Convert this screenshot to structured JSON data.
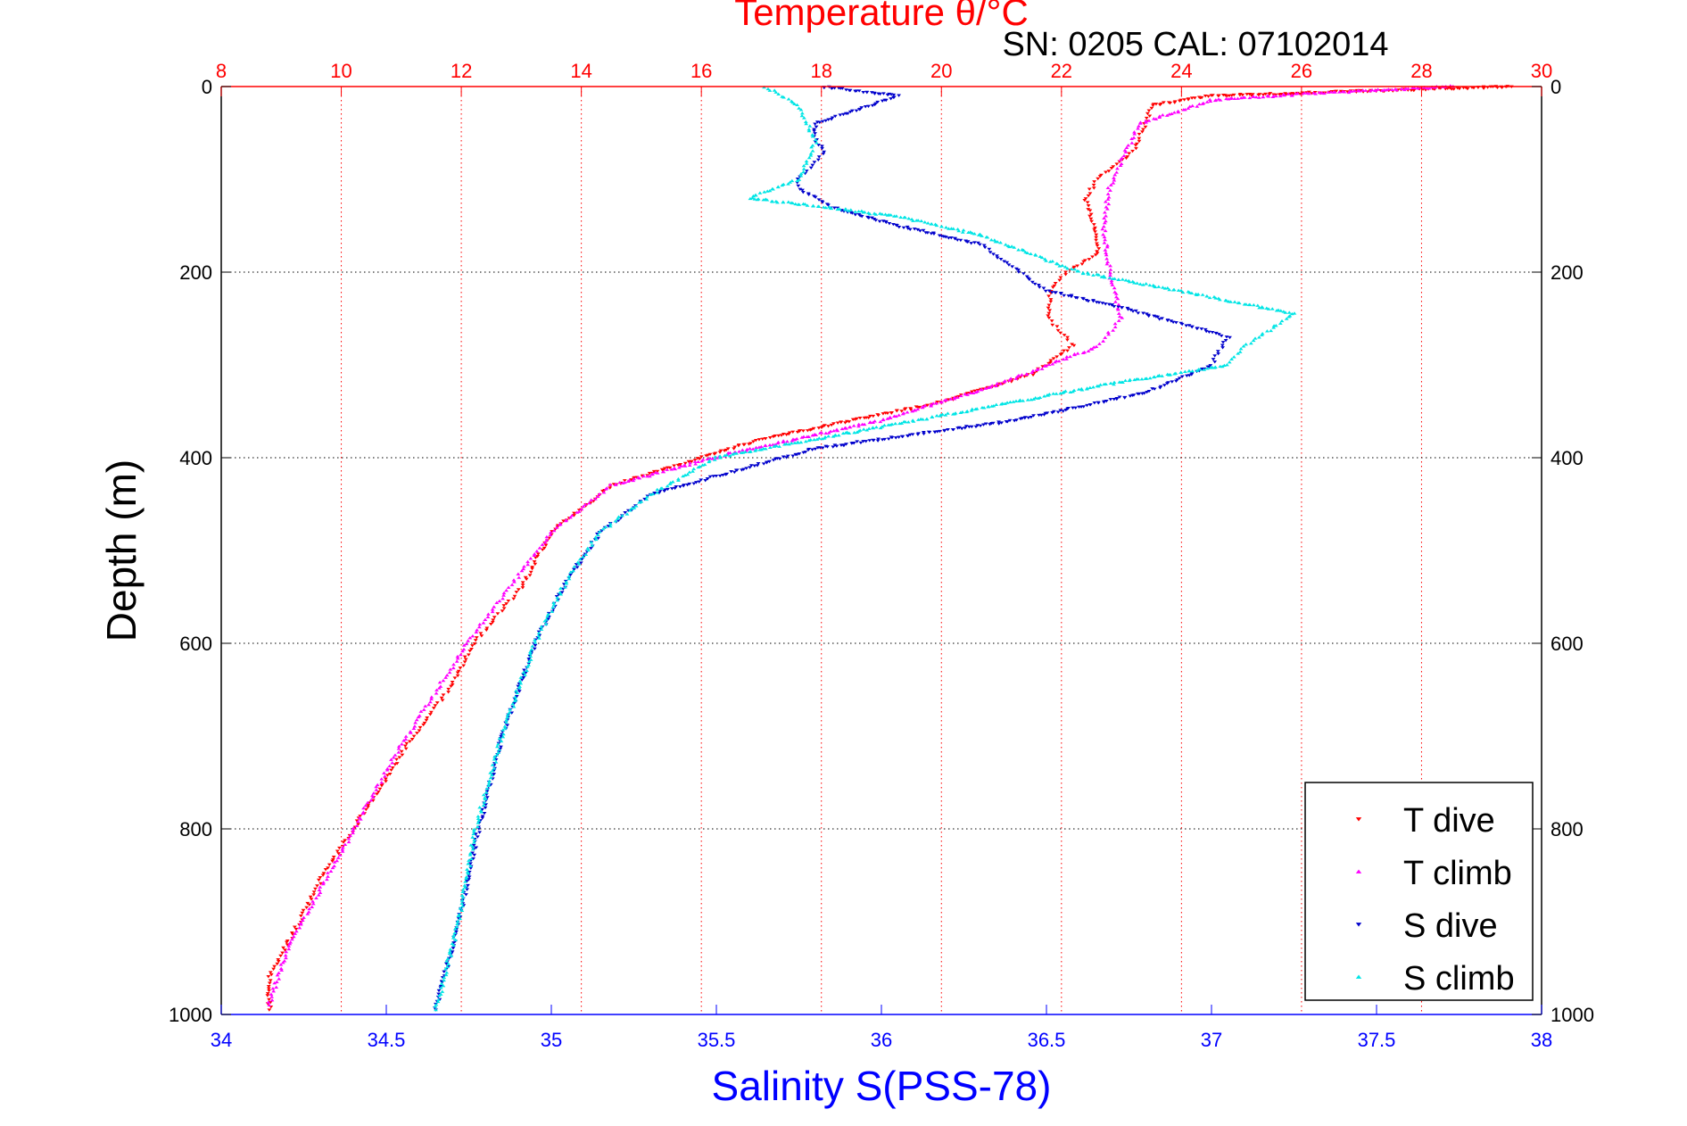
{
  "chart_data": {
    "type": "scatter",
    "title": "Temperature θ/°C",
    "subtitle": "SN: 0205  CAL: 07102014",
    "ylabel": "Depth (m)",
    "xlabel_bottom": "Salinity S(PSS-78)",
    "xlabel_top": "Temperature θ/°C",
    "ylim": [
      0,
      1000
    ],
    "y_reversed": true,
    "x_bottom_lim": [
      34,
      38
    ],
    "x_top_lim": [
      8,
      30
    ],
    "y_ticks": [
      "0",
      "200",
      "400",
      "600",
      "800",
      "1000"
    ],
    "x_bottom_ticks": [
      "34",
      "34.5",
      "35",
      "35.5",
      "36",
      "36.5",
      "37",
      "37.5",
      "38"
    ],
    "x_top_ticks": [
      "8",
      "10",
      "12",
      "14",
      "16",
      "18",
      "20",
      "22",
      "24",
      "26",
      "28",
      "30"
    ],
    "grid": true,
    "legend_position": "bottom-right",
    "legend": [
      "T dive",
      "T climb",
      "S dive",
      "S climb"
    ],
    "colors": {
      "T dive": "#ff0000",
      "T climb": "#ff00ff",
      "S dive": "#0000cc",
      "S climb": "#00e5e5",
      "top_axis": "#ff0000",
      "bottom_axis": "#0000ff"
    },
    "series": [
      {
        "name": "T dive",
        "axis": "top",
        "marker": "triangle-down",
        "points": [
          [
            29.5,
            0
          ],
          [
            24.5,
            10
          ],
          [
            23.5,
            20
          ],
          [
            23.4,
            40
          ],
          [
            23.2,
            70
          ],
          [
            22.6,
            100
          ],
          [
            22.4,
            120
          ],
          [
            22.6,
            160
          ],
          [
            22.6,
            180
          ],
          [
            22.1,
            200
          ],
          [
            21.8,
            220
          ],
          [
            21.8,
            250
          ],
          [
            22.2,
            280
          ],
          [
            21.5,
            310
          ],
          [
            20,
            340
          ],
          [
            17,
            380
          ],
          [
            15.5,
            410
          ],
          [
            14.5,
            430
          ],
          [
            13.5,
            480
          ],
          [
            13,
            540
          ],
          [
            12.2,
            600
          ],
          [
            11.8,
            650
          ],
          [
            11.2,
            700
          ],
          [
            10.4,
            780
          ],
          [
            9.7,
            850
          ],
          [
            9.3,
            900
          ],
          [
            8.8,
            960
          ],
          [
            8.8,
            995
          ]
        ]
      },
      {
        "name": "T climb",
        "axis": "top",
        "marker": "triangle-up",
        "points": [
          [
            28.5,
            0
          ],
          [
            26,
            8
          ],
          [
            24.5,
            15
          ],
          [
            23.3,
            40
          ],
          [
            23,
            80
          ],
          [
            22.8,
            110
          ],
          [
            22.7,
            150
          ],
          [
            22.8,
            200
          ],
          [
            23,
            250
          ],
          [
            22.6,
            280
          ],
          [
            21,
            320
          ],
          [
            19,
            360
          ],
          [
            16.5,
            395
          ],
          [
            14.5,
            430
          ],
          [
            13.5,
            480
          ],
          [
            12.8,
            540
          ],
          [
            12.1,
            600
          ],
          [
            11.5,
            660
          ],
          [
            10.9,
            720
          ],
          [
            10.3,
            790
          ],
          [
            9.7,
            860
          ],
          [
            9.1,
            930
          ],
          [
            8.8,
            990
          ]
        ]
      },
      {
        "name": "S dive",
        "axis": "bottom",
        "marker": "triangle-down",
        "points": [
          [
            35.82,
            0
          ],
          [
            36.05,
            10
          ],
          [
            35.8,
            40
          ],
          [
            35.8,
            60
          ],
          [
            35.83,
            70
          ],
          [
            35.75,
            100
          ],
          [
            35.75,
            110
          ],
          [
            35.85,
            130
          ],
          [
            36.05,
            150
          ],
          [
            36.3,
            170
          ],
          [
            36.5,
            220
          ],
          [
            36.75,
            240
          ],
          [
            37.05,
            270
          ],
          [
            37,
            300
          ],
          [
            36.8,
            330
          ],
          [
            36.4,
            360
          ],
          [
            35.8,
            390
          ],
          [
            35.6,
            410
          ],
          [
            35.3,
            440
          ],
          [
            35.15,
            480
          ],
          [
            35.05,
            530
          ],
          [
            34.95,
            600
          ],
          [
            34.85,
            700
          ],
          [
            34.78,
            800
          ],
          [
            34.72,
            900
          ],
          [
            34.65,
            995
          ]
        ]
      },
      {
        "name": "S climb",
        "axis": "bottom",
        "marker": "triangle-up",
        "points": [
          [
            35.65,
            0
          ],
          [
            35.75,
            20
          ],
          [
            35.8,
            60
          ],
          [
            35.75,
            100
          ],
          [
            35.6,
            120
          ],
          [
            36.05,
            140
          ],
          [
            36.3,
            160
          ],
          [
            36.6,
            200
          ],
          [
            36.9,
            220
          ],
          [
            37.25,
            245
          ],
          [
            37.1,
            280
          ],
          [
            37.05,
            300
          ],
          [
            36.7,
            320
          ],
          [
            36.1,
            360
          ],
          [
            35.5,
            400
          ],
          [
            35.3,
            440
          ],
          [
            35.15,
            480
          ],
          [
            35.05,
            530
          ],
          [
            34.95,
            600
          ],
          [
            34.85,
            700
          ],
          [
            34.77,
            800
          ],
          [
            34.72,
            900
          ],
          [
            34.65,
            995
          ]
        ]
      }
    ]
  }
}
